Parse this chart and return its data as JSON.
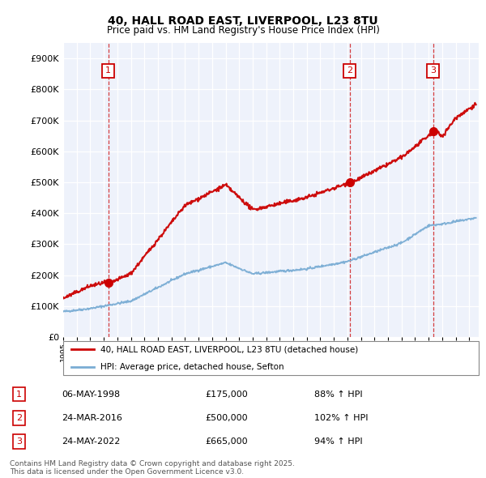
{
  "title1": "40, HALL ROAD EAST, LIVERPOOL, L23 8TU",
  "title2": "Price paid vs. HM Land Registry's House Price Index (HPI)",
  "legend1": "40, HALL ROAD EAST, LIVERPOOL, L23 8TU (detached house)",
  "legend2": "HPI: Average price, detached house, Sefton",
  "sale1_date": "06-MAY-1998",
  "sale1_price": 175000,
  "sale1_hpi": "88% ↑ HPI",
  "sale1_label": "1",
  "sale2_date": "24-MAR-2016",
  "sale2_price": 500000,
  "sale2_hpi": "102% ↑ HPI",
  "sale2_label": "2",
  "sale3_date": "24-MAY-2022",
  "sale3_price": 665000,
  "sale3_hpi": "94% ↑ HPI",
  "sale3_label": "3",
  "red_color": "#cc0000",
  "blue_color": "#7aadd4",
  "footer": "Contains HM Land Registry data © Crown copyright and database right 2025.\nThis data is licensed under the Open Government Licence v3.0.",
  "ylim": [
    0,
    950000
  ],
  "yticks": [
    0,
    100000,
    200000,
    300000,
    400000,
    500000,
    600000,
    700000,
    800000,
    900000
  ],
  "bg_color": "#eef2fb"
}
